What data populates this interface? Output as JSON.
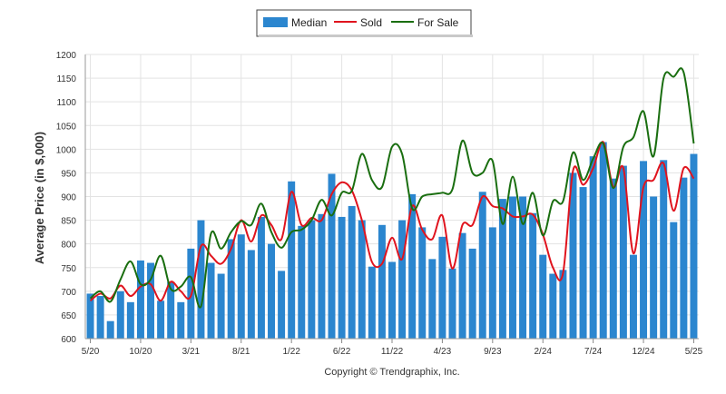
{
  "chart_data": {
    "type": "bar",
    "ylabel": "Average Price (in $,000)",
    "footer": "Copyright © Trendgraphix, Inc.",
    "ylim": [
      600,
      1200
    ],
    "yticks": [
      600,
      650,
      700,
      750,
      800,
      850,
      900,
      950,
      1000,
      1050,
      1100,
      1150,
      1200
    ],
    "xtick_labels": [
      "5/20",
      "10/20",
      "3/21",
      "8/21",
      "1/22",
      "6/22",
      "11/22",
      "4/23",
      "9/23",
      "2/24",
      "7/24",
      "12/24",
      "5/25"
    ],
    "x": [
      "5/20",
      "6/20",
      "7/20",
      "8/20",
      "9/20",
      "10/20",
      "11/20",
      "12/20",
      "1/21",
      "2/21",
      "3/21",
      "4/21",
      "5/21",
      "6/21",
      "7/21",
      "8/21",
      "9/21",
      "10/21",
      "11/21",
      "12/21",
      "1/22",
      "2/22",
      "3/22",
      "4/22",
      "5/22",
      "6/22",
      "7/22",
      "8/22",
      "9/22",
      "10/22",
      "11/22",
      "12/22",
      "1/23",
      "2/23",
      "3/23",
      "4/23",
      "5/23",
      "6/23",
      "7/23",
      "8/23",
      "9/23",
      "10/23",
      "11/23",
      "12/23",
      "1/24",
      "2/24",
      "3/24",
      "4/24",
      "5/24",
      "6/24",
      "7/24",
      "8/24",
      "9/24",
      "10/24",
      "11/24",
      "12/24",
      "1/25",
      "2/25",
      "3/25",
      "4/25",
      "5/25"
    ],
    "grid": true,
    "legend_position": "top-center",
    "series": [
      {
        "name": "Median",
        "type": "bar",
        "color": "#2b86cf",
        "values": [
          695,
          690,
          637,
          700,
          677,
          765,
          760,
          680,
          720,
          677,
          790,
          850,
          760,
          737,
          810,
          820,
          787,
          857,
          800,
          743,
          932,
          838,
          850,
          863,
          948,
          857,
          880,
          850,
          752,
          840,
          762,
          850,
          905,
          835,
          768,
          815,
          748,
          823,
          790,
          910,
          835,
          895,
          900,
          900,
          865,
          777,
          737,
          745,
          950,
          920,
          985,
          1015,
          938,
          965,
          777,
          975,
          900,
          977,
          846,
          940,
          990
        ]
      },
      {
        "name": "Sold",
        "type": "line",
        "color": "#e0141e",
        "values": [
          680,
          695,
          685,
          712,
          690,
          710,
          715,
          680,
          720,
          700,
          690,
          795,
          775,
          758,
          790,
          850,
          805,
          860,
          840,
          810,
          910,
          840,
          855,
          850,
          905,
          930,
          913,
          850,
          762,
          758,
          813,
          768,
          880,
          830,
          810,
          860,
          748,
          840,
          840,
          900,
          880,
          875,
          858,
          858,
          862,
          820,
          750,
          738,
          955,
          925,
          960,
          1015,
          920,
          960,
          780,
          920,
          935,
          970,
          870,
          960,
          938
        ]
      },
      {
        "name": "For Sale",
        "type": "line",
        "color": "#1a6e10",
        "values": [
          685,
          700,
          678,
          725,
          763,
          715,
          725,
          775,
          705,
          710,
          730,
          668,
          822,
          790,
          825,
          848,
          840,
          885,
          825,
          792,
          825,
          830,
          850,
          893,
          860,
          908,
          912,
          990,
          935,
          920,
          1005,
          990,
          875,
          900,
          905,
          908,
          915,
          1018,
          950,
          950,
          975,
          842,
          942,
          842,
          908,
          818,
          890,
          890,
          993,
          935,
          980,
          1012,
          918,
          1005,
          1025,
          1080,
          985,
          1150,
          1153,
          1162,
          1012
        ]
      }
    ]
  }
}
